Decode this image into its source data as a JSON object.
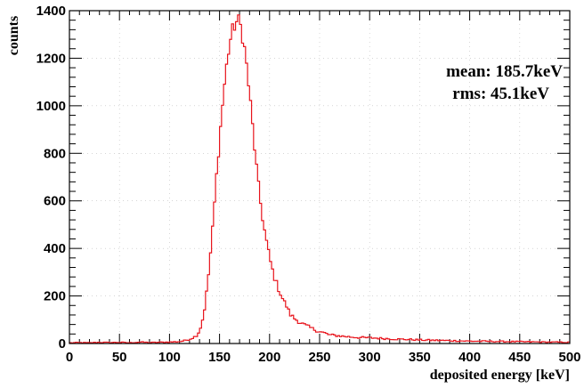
{
  "chart_data": {
    "type": "line",
    "style": "step-histogram",
    "xlabel": "deposited energy [keV]",
    "ylabel": "counts",
    "xlim": [
      0,
      500
    ],
    "ylim": [
      0,
      1400
    ],
    "xticks": [
      "0",
      "50",
      "100",
      "150",
      "200",
      "250",
      "300",
      "350",
      "400",
      "450",
      "500"
    ],
    "yticks": [
      "0",
      "200",
      "400",
      "600",
      "800",
      "1000",
      "1200",
      "1400"
    ],
    "grid": true,
    "line_color": "#e8141c",
    "annotations": [
      "mean: 185.7keV",
      "rms: 45.1keV"
    ],
    "series": [
      {
        "x": [
          0,
          10,
          20,
          30,
          40,
          50,
          60,
          70,
          80,
          90,
          100,
          110,
          115,
          120,
          125,
          128,
          130,
          132,
          134,
          136,
          138,
          140,
          142,
          144,
          146,
          148,
          150,
          152,
          154,
          156,
          158,
          160,
          162,
          164,
          166,
          168,
          170,
          172,
          174,
          176,
          178,
          180,
          182,
          184,
          186,
          188,
          190,
          192,
          194,
          196,
          198,
          200,
          202,
          204,
          206,
          208,
          210,
          212,
          214,
          216,
          218,
          220,
          225,
          230,
          235,
          240,
          245,
          250,
          255,
          260,
          270,
          280,
          290,
          300,
          310,
          320,
          330,
          340,
          350,
          360,
          370,
          380,
          390,
          400,
          420,
          440,
          460,
          480,
          500
        ],
        "y": [
          3,
          4,
          3,
          5,
          4,
          5,
          3,
          6,
          4,
          5,
          6,
          8,
          12,
          18,
          28,
          38,
          55,
          80,
          120,
          175,
          250,
          330,
          430,
          530,
          650,
          760,
          860,
          960,
          1050,
          1130,
          1200,
          1260,
          1300,
          1330,
          1345,
          1360,
          1350,
          1320,
          1270,
          1210,
          1130,
          1050,
          960,
          870,
          780,
          700,
          620,
          560,
          500,
          450,
          405,
          360,
          325,
          290,
          265,
          240,
          220,
          200,
          180,
          165,
          150,
          125,
          105,
          90,
          78,
          68,
          58,
          50,
          44,
          36,
          32,
          28,
          25,
          24,
          22,
          20,
          18,
          17,
          15,
          14,
          13,
          12,
          11,
          10,
          9,
          8,
          7,
          6,
          5
        ]
      }
    ]
  }
}
